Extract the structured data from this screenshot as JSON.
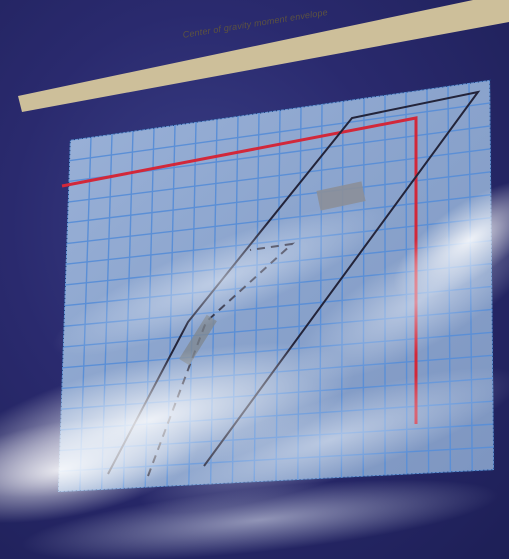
{
  "envelope": {
    "title": "Center of gravity moment envelope"
  },
  "colors": {
    "background": "#2a2a6e",
    "grid_panel": "#8fa9cf",
    "grid_lines": "#5b8fd6",
    "limit_line": "#d2283a",
    "envelope_line": "#23243a",
    "header_strip": "#cdbf9a"
  }
}
